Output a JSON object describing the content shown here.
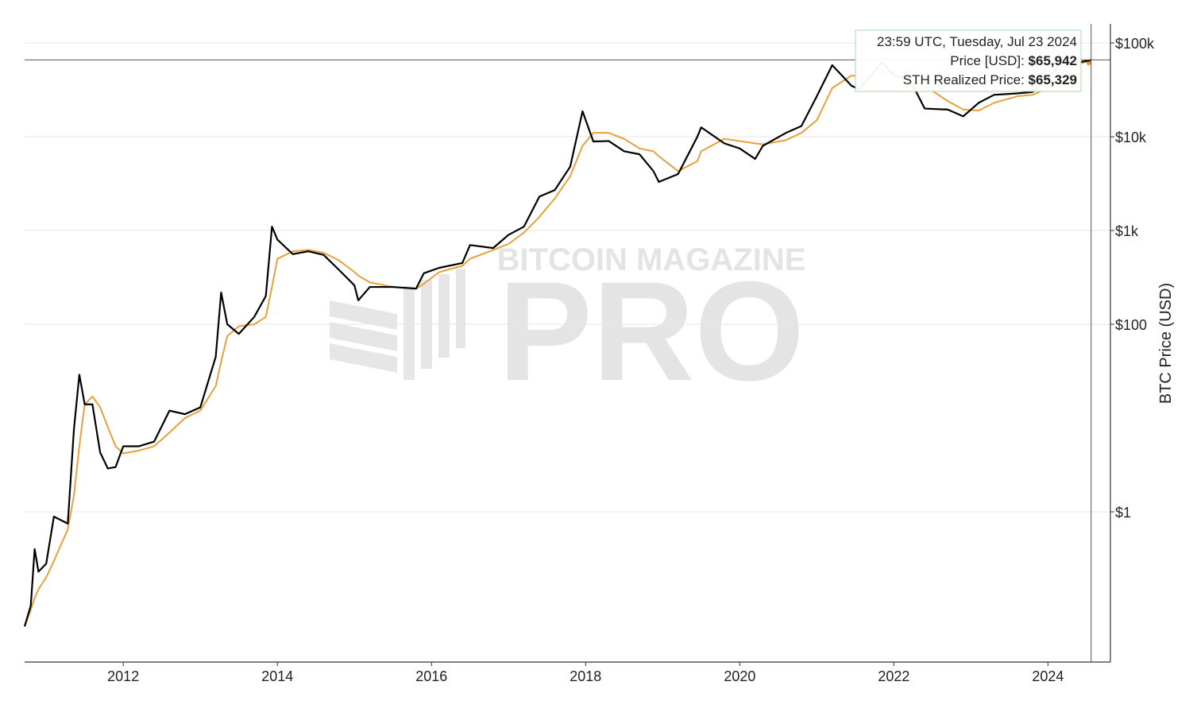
{
  "chart_data": {
    "type": "line",
    "y_axis_label": "BTC Price (USD)",
    "watermark": [
      "BITCOIN MAGAZINE",
      "PRO"
    ],
    "log_y": true,
    "grid": true,
    "xlim": [
      2010.72,
      2024.81
    ],
    "xticks": [
      2012,
      2014,
      2016,
      2018,
      2020,
      2022,
      2024
    ],
    "ylim": [
      0.025,
      160000
    ],
    "yticks": [
      {
        "value": 1,
        "label": "$1"
      },
      {
        "value": 100,
        "label": "$100"
      },
      {
        "value": 1000,
        "label": "$1k"
      },
      {
        "value": 10000,
        "label": "$10k"
      },
      {
        "value": 100000,
        "label": "$100k"
      }
    ],
    "x": [
      2010.72,
      2010.8,
      2010.85,
      2010.9,
      2011.0,
      2011.1,
      2011.28,
      2011.36,
      2011.43,
      2011.5,
      2011.6,
      2011.7,
      2011.8,
      2011.9,
      2012.0,
      2012.2,
      2012.4,
      2012.6,
      2012.8,
      2013.0,
      2013.2,
      2013.27,
      2013.35,
      2013.5,
      2013.7,
      2013.85,
      2013.93,
      2014.0,
      2014.2,
      2014.4,
      2014.6,
      2014.8,
      2015.0,
      2015.05,
      2015.2,
      2015.5,
      2015.8,
      2015.9,
      2016.1,
      2016.4,
      2016.5,
      2016.8,
      2017.0,
      2017.2,
      2017.4,
      2017.6,
      2017.8,
      2017.96,
      2018.1,
      2018.3,
      2018.5,
      2018.7,
      2018.88,
      2018.95,
      2019.2,
      2019.45,
      2019.5,
      2019.8,
      2020.0,
      2020.2,
      2020.3,
      2020.6,
      2020.8,
      2021.0,
      2021.2,
      2021.45,
      2021.55,
      2021.7,
      2021.85,
      2022.0,
      2022.2,
      2022.4,
      2022.7,
      2022.9,
      2023.1,
      2023.3,
      2023.6,
      2023.8,
      2024.0,
      2024.2,
      2024.4,
      2024.56
    ],
    "series": [
      {
        "color": "#000000",
        "values": [
          0.06,
          0.1,
          0.4,
          0.23,
          0.28,
          0.89,
          0.75,
          7.6,
          29,
          14,
          14,
          4.3,
          2.9,
          3,
          5,
          5,
          5.6,
          12,
          11,
          13,
          45,
          218,
          100,
          79,
          120,
          200,
          1100,
          800,
          560,
          600,
          550,
          380,
          260,
          180,
          250,
          250,
          240,
          350,
          400,
          450,
          700,
          650,
          900,
          1100,
          2300,
          2700,
          4800,
          18700,
          8900,
          9000,
          7000,
          6500,
          4300,
          3300,
          4000,
          10000,
          12600,
          8500,
          7500,
          5800,
          8000,
          11000,
          13000,
          27000,
          58000,
          35000,
          32000,
          45000,
          62000,
          45000,
          42000,
          20000,
          19500,
          16500,
          23000,
          28000,
          29000,
          30000,
          42000,
          65000,
          62000,
          65942
        ]
      },
      {
        "color": "#e8a03c",
        "values": [
          0.06,
          0.09,
          0.12,
          0.15,
          0.2,
          0.3,
          0.65,
          1.5,
          5,
          14,
          17,
          13,
          8,
          5,
          4.2,
          4.5,
          5,
          7,
          10,
          12,
          22,
          40,
          75,
          95,
          100,
          120,
          250,
          500,
          600,
          620,
          580,
          480,
          360,
          330,
          280,
          250,
          240,
          270,
          360,
          420,
          500,
          620,
          720,
          950,
          1400,
          2200,
          3800,
          8000,
          11000,
          11000,
          9500,
          7500,
          7000,
          6200,
          4300,
          5500,
          7000,
          9500,
          9000,
          8500,
          8300,
          9200,
          11000,
          15000,
          33000,
          45000,
          44000,
          44000,
          48000,
          50000,
          42000,
          35000,
          24000,
          19500,
          19000,
          23000,
          27000,
          28000,
          33000,
          48000,
          60000,
          65329
        ]
      }
    ],
    "tooltip": {
      "title": "23:59 UTC, Tuesday, Jul 23 2024",
      "items": [
        {
          "label": "Price [USD]:",
          "value": 65942,
          "value_label": "$65,942"
        },
        {
          "label": "STH Realized Price:",
          "value": 65329,
          "value_label": "$65,329"
        }
      ]
    }
  }
}
